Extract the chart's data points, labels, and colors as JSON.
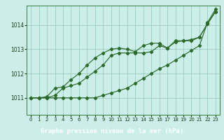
{
  "xlabel": "Graphe pression niveau de la mer (hPa)",
  "bg_color": "#cceee8",
  "grid_color": "#99ccbb",
  "line_color": "#2d6b2d",
  "label_bg": "#1a5c1a",
  "label_fg": "#ffffff",
  "xlim": [
    -0.5,
    23.5
  ],
  "ylim": [
    1010.3,
    1014.8
  ],
  "yticks": [
    1011,
    1012,
    1013,
    1014
  ],
  "xticks": [
    0,
    1,
    2,
    3,
    4,
    5,
    6,
    7,
    8,
    9,
    10,
    11,
    12,
    13,
    14,
    15,
    16,
    17,
    18,
    19,
    20,
    21,
    22,
    23
  ],
  "line1_x": [
    0,
    1,
    2,
    3,
    4,
    5,
    6,
    7,
    8,
    9,
    10,
    11,
    12,
    13,
    14,
    15,
    16,
    17,
    18,
    19,
    20,
    21,
    22,
    23
  ],
  "line1": [
    1011.0,
    1011.0,
    1011.0,
    1011.1,
    1011.4,
    1011.5,
    1011.6,
    1011.85,
    1012.1,
    1012.35,
    1012.75,
    1012.85,
    1012.85,
    1012.85,
    1012.85,
    1012.9,
    1013.15,
    1013.05,
    1013.3,
    1013.35,
    1013.35,
    1013.5,
    1014.05,
    1014.55
  ],
  "line2_x": [
    0,
    1,
    2,
    3,
    4,
    5,
    6,
    7,
    8,
    9,
    10,
    11,
    12,
    13,
    14,
    15,
    16,
    17,
    18,
    19,
    20,
    21,
    22,
    23
  ],
  "line2": [
    1011.0,
    1011.0,
    1011.05,
    1011.4,
    1011.45,
    1011.75,
    1012.0,
    1012.35,
    1012.65,
    1012.85,
    1013.0,
    1013.05,
    1013.0,
    1012.9,
    1013.15,
    1013.25,
    1013.25,
    1013.05,
    1013.35,
    1013.35,
    1013.4,
    1013.5,
    1014.05,
    1014.55
  ],
  "line3_x": [
    0,
    1,
    2,
    3,
    4,
    5,
    6,
    7,
    8,
    9,
    10,
    11,
    12,
    13,
    14,
    15,
    16,
    17,
    18,
    19,
    20,
    21,
    22,
    23
  ],
  "line3": [
    1011.0,
    1011.0,
    1011.0,
    1011.0,
    1011.0,
    1011.0,
    1011.0,
    1011.0,
    1011.0,
    1011.1,
    1011.2,
    1011.3,
    1011.4,
    1011.6,
    1011.8,
    1012.0,
    1012.2,
    1012.35,
    1012.55,
    1012.75,
    1012.95,
    1013.15,
    1014.1,
    1014.65
  ]
}
